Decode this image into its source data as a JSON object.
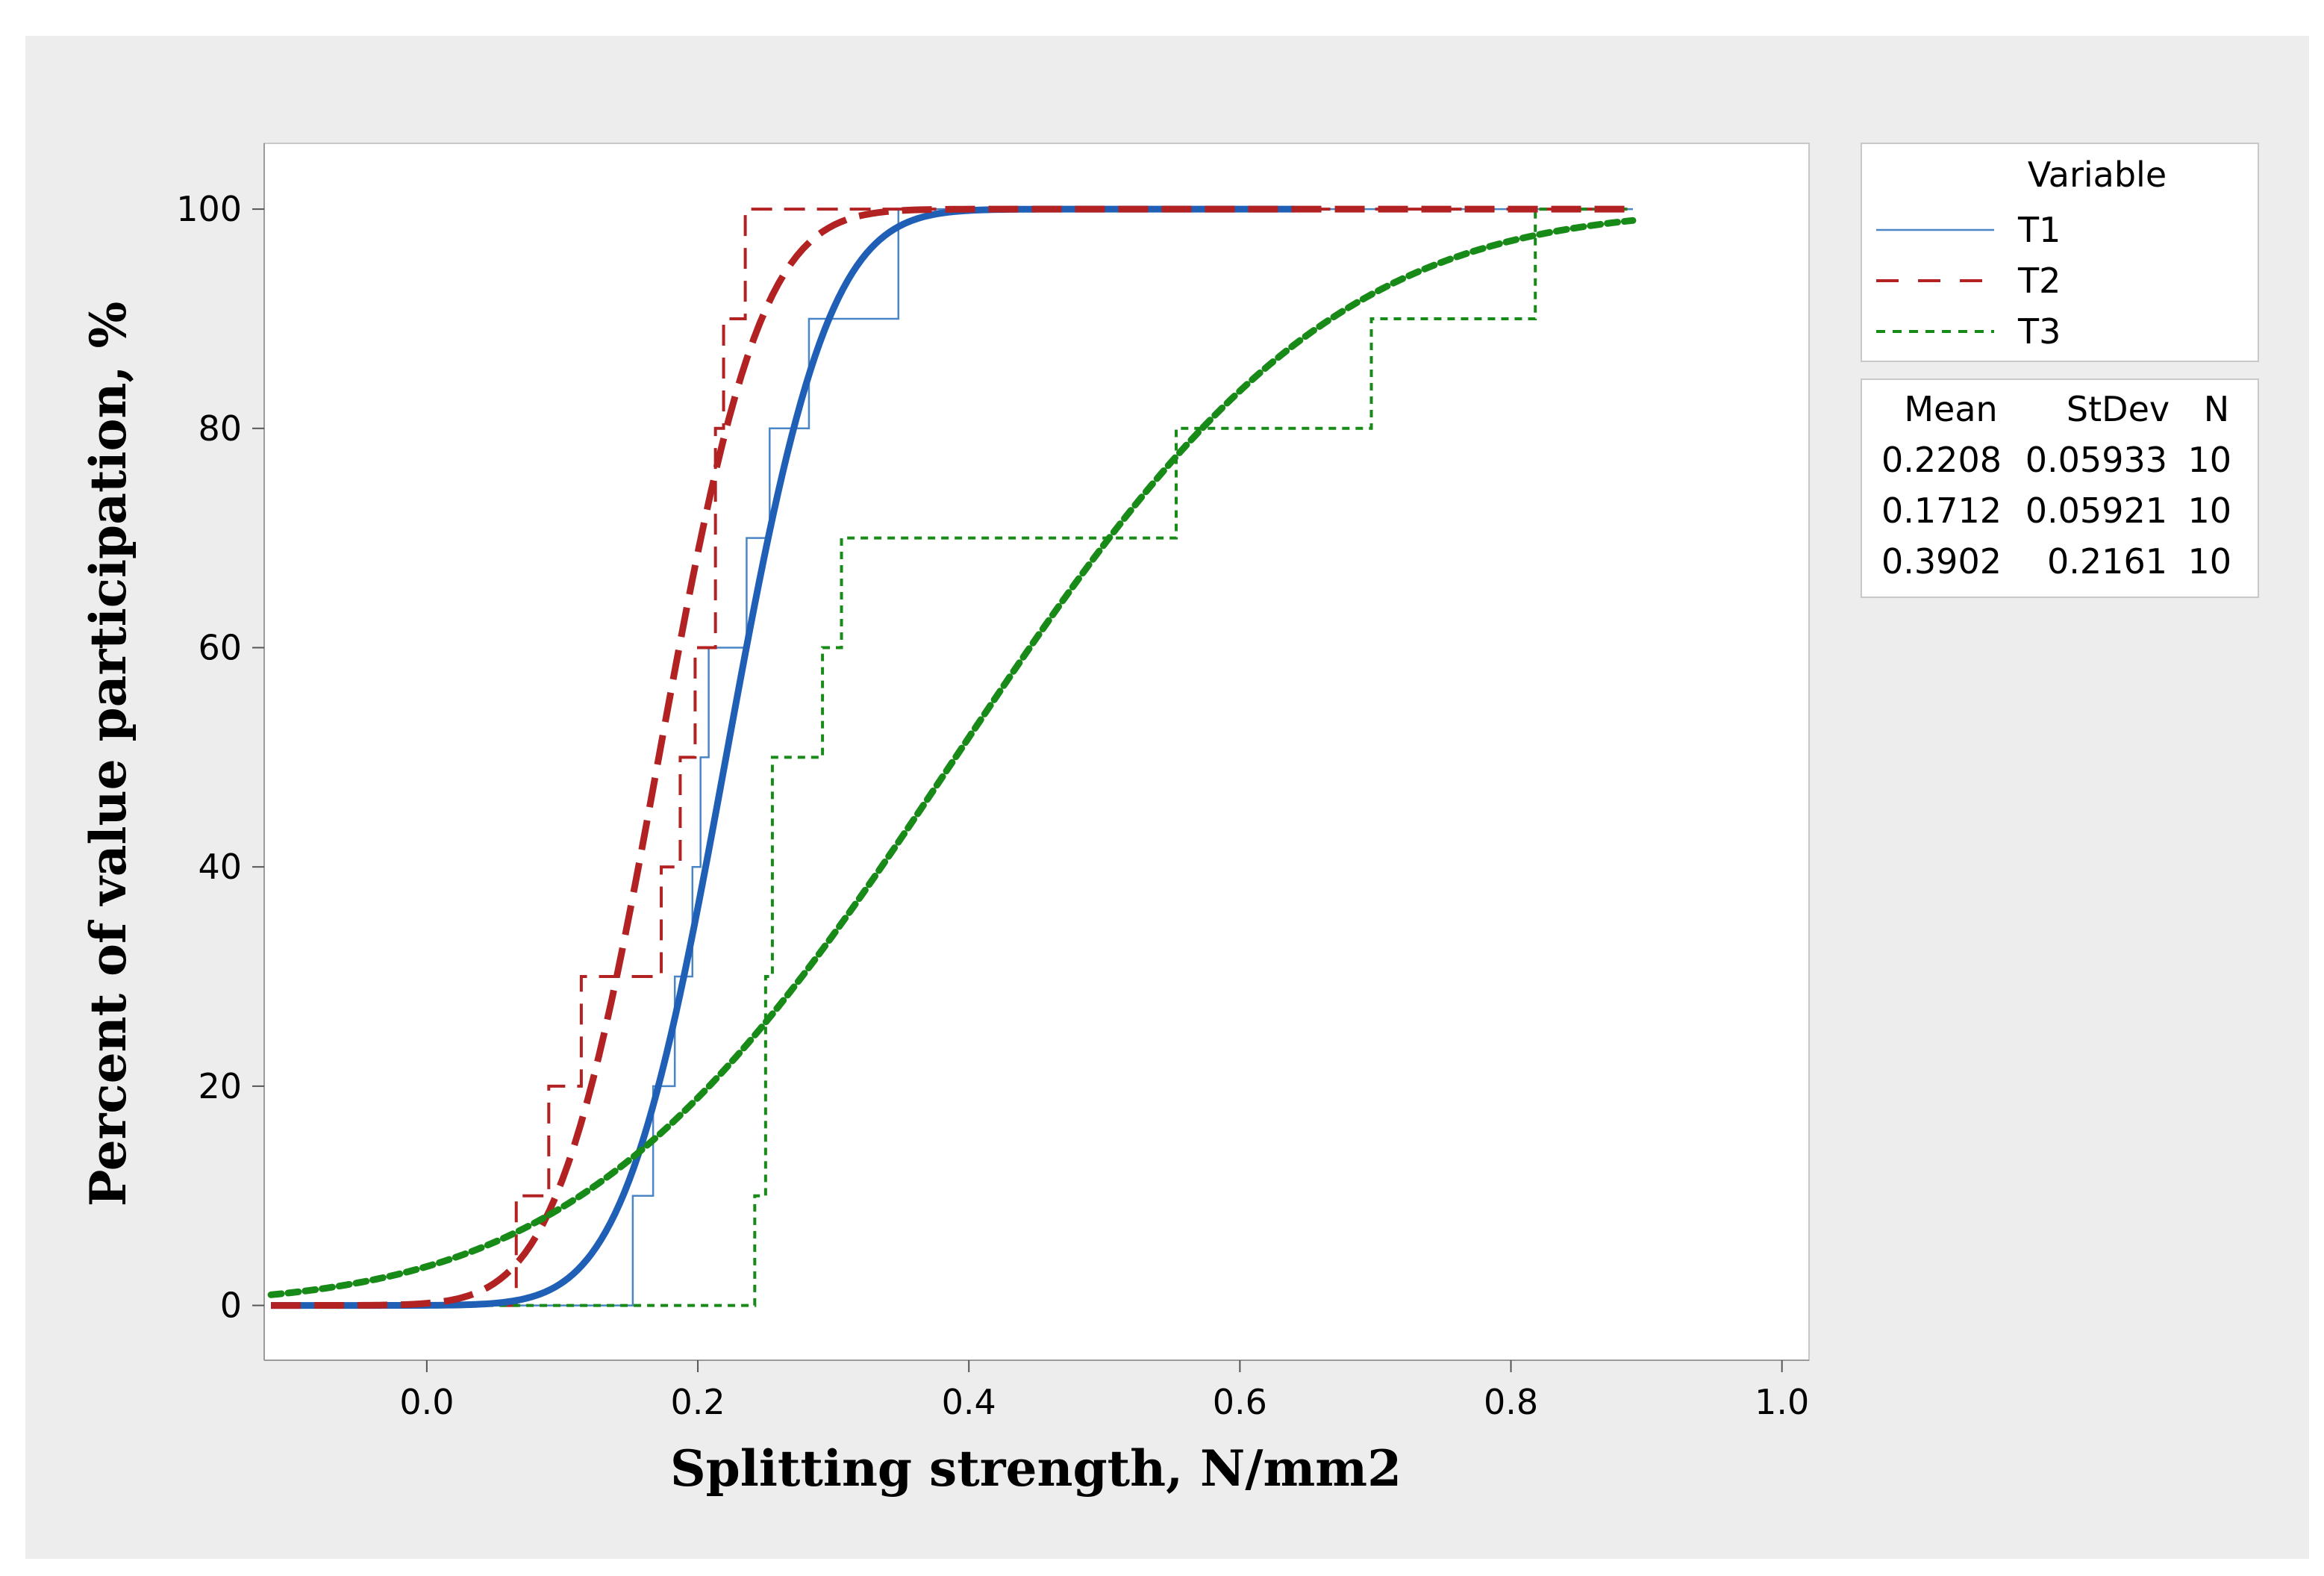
{
  "chart_data": {
    "type": "line",
    "subtype": "empirical-cdf-with-fitted-normal",
    "title": "",
    "xlabel": "Splitting strength, N/mm2",
    "ylabel": "Percent of value participation, %",
    "xlim": [
      -0.12,
      1.02
    ],
    "ylim": [
      -5,
      106
    ],
    "x_ticks": [
      0.0,
      0.2,
      0.4,
      0.6,
      0.8,
      1.0
    ],
    "x_tick_labels": [
      "0.0",
      "0.2",
      "0.4",
      "0.6",
      "0.8",
      "1.0"
    ],
    "y_ticks": [
      0,
      20,
      40,
      60,
      80,
      100
    ],
    "y_tick_labels": [
      "0",
      "20",
      "40",
      "60",
      "80",
      "100"
    ],
    "grid": false,
    "legend": {
      "title": "Variable",
      "placement": "right-top",
      "entries": [
        "T1",
        "T2",
        "T3"
      ]
    },
    "stats_table": {
      "headers": [
        "Mean",
        "StDev",
        "N"
      ],
      "rows": [
        [
          "0.2208",
          "0.05933",
          "10"
        ],
        [
          "0.1712",
          "0.05921",
          "10"
        ],
        [
          "0.3902",
          "0.2161",
          "10"
        ]
      ]
    },
    "fit_range": [
      -0.115,
      0.89
    ],
    "series": [
      {
        "name": "T1",
        "color": "#4a86c6",
        "fit_color": "#1f5fb5",
        "line_style": "solid",
        "mean": 0.2208,
        "stdev": 0.05933,
        "n": 10,
        "fit_x_range": [
          -0.115,
          0.64
        ],
        "ecdf_steps": [
          [
            0.152,
            10
          ],
          [
            0.167,
            20
          ],
          [
            0.183,
            30
          ],
          [
            0.196,
            40
          ],
          [
            0.202,
            50
          ],
          [
            0.208,
            60
          ],
          [
            0.236,
            70
          ],
          [
            0.253,
            80
          ],
          [
            0.282,
            90
          ],
          [
            0.348,
            100
          ]
        ]
      },
      {
        "name": "T2",
        "color": "#b22222",
        "fit_color": "#b22222",
        "line_style": "dashed",
        "mean": 0.1712,
        "stdev": 0.05921,
        "n": 10,
        "fit_x_range": [
          -0.115,
          0.89
        ],
        "ecdf_steps": [
          [
            0.066,
            10
          ],
          [
            0.09,
            20
          ],
          [
            0.114,
            30
          ],
          [
            0.173,
            40
          ],
          [
            0.187,
            50
          ],
          [
            0.198,
            60
          ],
          [
            0.213,
            80
          ],
          [
            0.219,
            90
          ],
          [
            0.235,
            100
          ]
        ]
      },
      {
        "name": "T3",
        "color": "#188a18",
        "fit_color": "#188a18",
        "line_style": "dotted",
        "mean": 0.3902,
        "stdev": 0.2161,
        "n": 10,
        "fit_x_range": [
          -0.115,
          0.89
        ],
        "ecdf_steps": [
          [
            0.242,
            10
          ],
          [
            0.25,
            30
          ],
          [
            0.255,
            50
          ],
          [
            0.292,
            60
          ],
          [
            0.306,
            70
          ],
          [
            0.553,
            80
          ],
          [
            0.697,
            90
          ],
          [
            0.818,
            100
          ]
        ]
      }
    ]
  }
}
